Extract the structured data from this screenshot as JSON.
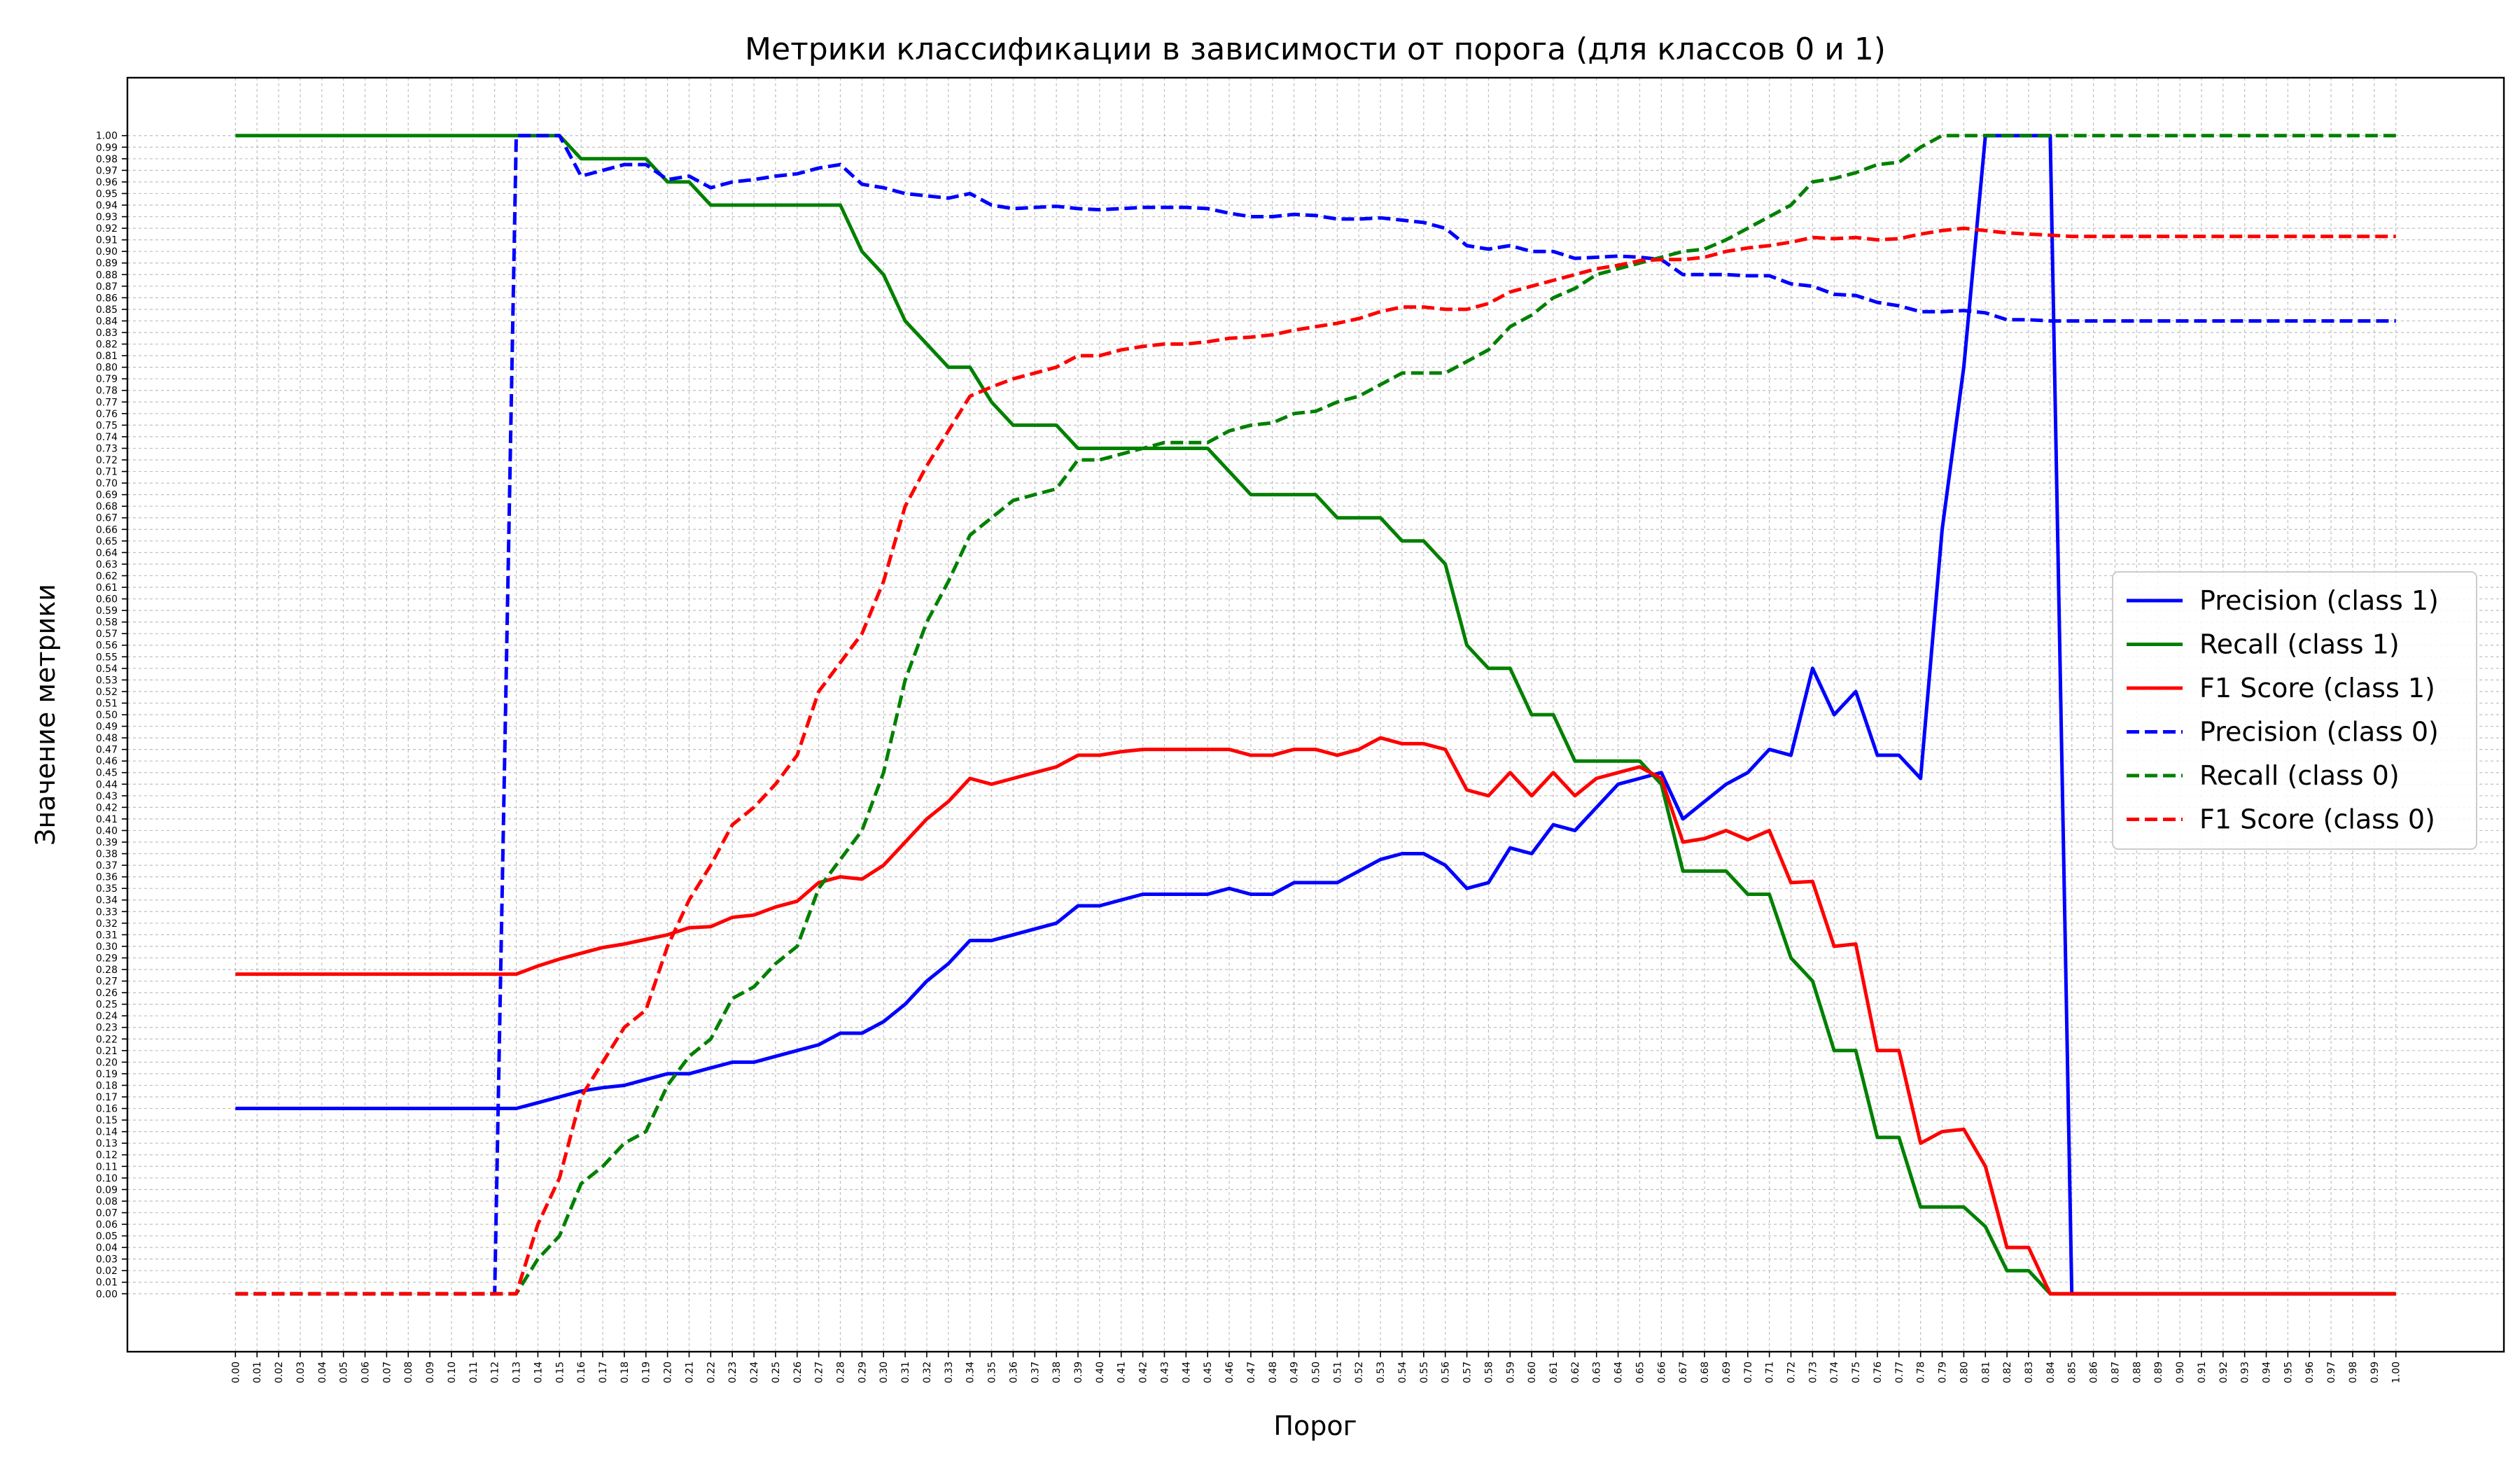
{
  "chart_data": {
    "type": "line",
    "title": "Метрики классификации в зависимости от порога (для классов 0 и 1)",
    "xlabel": "Порог",
    "ylabel": "Значение метрики",
    "xlim": [
      -0.05,
      1.05
    ],
    "ylim": [
      -0.05,
      1.05
    ],
    "grid": true,
    "legend_position": "center-right",
    "x": [
      0.0,
      0.01,
      0.02,
      0.03,
      0.04,
      0.05,
      0.06,
      0.07,
      0.08,
      0.09,
      0.1,
      0.11,
      0.12,
      0.13,
      0.14,
      0.15,
      0.16,
      0.17,
      0.18,
      0.19,
      0.2,
      0.21,
      0.22,
      0.23,
      0.24,
      0.25,
      0.26,
      0.27,
      0.28,
      0.29,
      0.3,
      0.31,
      0.32,
      0.33,
      0.34,
      0.35,
      0.36,
      0.37,
      0.38,
      0.39,
      0.4,
      0.41,
      0.42,
      0.43,
      0.44,
      0.45,
      0.46,
      0.47,
      0.48,
      0.49,
      0.5,
      0.51,
      0.52,
      0.53,
      0.54,
      0.55,
      0.56,
      0.57,
      0.58,
      0.59,
      0.6,
      0.61,
      0.62,
      0.63,
      0.64,
      0.65,
      0.66,
      0.67,
      0.68,
      0.69,
      0.7,
      0.71,
      0.72,
      0.73,
      0.74,
      0.75,
      0.76,
      0.77,
      0.78,
      0.79,
      0.8,
      0.81,
      0.82,
      0.83,
      0.84,
      0.85,
      0.86,
      0.87,
      0.88,
      0.89,
      0.9,
      0.91,
      0.92,
      0.93,
      0.94,
      0.95,
      0.96,
      0.97,
      0.98,
      0.99,
      1.0
    ],
    "xtick_labels": [
      "0.00",
      "0.01",
      "0.02",
      "0.03",
      "0.04",
      "0.05",
      "0.06",
      "0.07",
      "0.08",
      "0.09",
      "0.10",
      "0.11",
      "0.12",
      "0.13",
      "0.14",
      "0.15",
      "0.16",
      "0.17",
      "0.18",
      "0.19",
      "0.20",
      "0.21",
      "0.22",
      "0.23",
      "0.24",
      "0.25",
      "0.26",
      "0.27",
      "0.28",
      "0.29",
      "0.30",
      "0.31",
      "0.32",
      "0.33",
      "0.34",
      "0.35",
      "0.36",
      "0.37",
      "0.38",
      "0.39",
      "0.40",
      "0.41",
      "0.42",
      "0.43",
      "0.44",
      "0.45",
      "0.46",
      "0.47",
      "0.48",
      "0.49",
      "0.50",
      "0.51",
      "0.52",
      "0.53",
      "0.54",
      "0.55",
      "0.56",
      "0.57",
      "0.58",
      "0.59",
      "0.60",
      "0.61",
      "0.62",
      "0.63",
      "0.64",
      "0.65",
      "0.66",
      "0.67",
      "0.68",
      "0.69",
      "0.70",
      "0.71",
      "0.72",
      "0.73",
      "0.74",
      "0.75",
      "0.76",
      "0.77",
      "0.78",
      "0.79",
      "0.80",
      "0.81",
      "0.82",
      "0.83",
      "0.84",
      "0.85",
      "0.86",
      "0.87",
      "0.88",
      "0.89",
      "0.90",
      "0.91",
      "0.92",
      "0.93",
      "0.94",
      "0.95",
      "0.96",
      "0.97",
      "0.98",
      "0.99",
      "1.00"
    ],
    "ytick_labels": [
      "0.00",
      "0.01",
      "0.02",
      "0.03",
      "0.04",
      "0.05",
      "0.06",
      "0.07",
      "0.08",
      "0.09",
      "0.10",
      "0.11",
      "0.12",
      "0.13",
      "0.14",
      "0.15",
      "0.16",
      "0.17",
      "0.18",
      "0.19",
      "0.20",
      "0.21",
      "0.22",
      "0.23",
      "0.24",
      "0.25",
      "0.26",
      "0.27",
      "0.28",
      "0.29",
      "0.30",
      "0.31",
      "0.32",
      "0.33",
      "0.34",
      "0.35",
      "0.36",
      "0.37",
      "0.38",
      "0.39",
      "0.40",
      "0.41",
      "0.42",
      "0.43",
      "0.44",
      "0.45",
      "0.46",
      "0.47",
      "0.48",
      "0.49",
      "0.50",
      "0.51",
      "0.52",
      "0.53",
      "0.54",
      "0.55",
      "0.56",
      "0.57",
      "0.58",
      "0.59",
      "0.60",
      "0.61",
      "0.62",
      "0.63",
      "0.64",
      "0.65",
      "0.66",
      "0.67",
      "0.68",
      "0.69",
      "0.70",
      "0.71",
      "0.72",
      "0.73",
      "0.74",
      "0.75",
      "0.76",
      "0.77",
      "0.78",
      "0.79",
      "0.80",
      "0.81",
      "0.82",
      "0.83",
      "0.84",
      "0.85",
      "0.86",
      "0.87",
      "0.88",
      "0.89",
      "0.90",
      "0.91",
      "0.92",
      "0.93",
      "0.94",
      "0.95",
      "0.96",
      "0.97",
      "0.98",
      "0.99",
      "1.00"
    ],
    "series": [
      {
        "name": "Precision (class 1)",
        "color": "#0000ff",
        "style": "solid",
        "values": [
          0.16,
          0.16,
          0.16,
          0.16,
          0.16,
          0.16,
          0.16,
          0.16,
          0.16,
          0.16,
          0.16,
          0.16,
          0.16,
          0.16,
          0.165,
          0.17,
          0.175,
          0.178,
          0.18,
          0.185,
          0.19,
          0.19,
          0.195,
          0.2,
          0.2,
          0.205,
          0.21,
          0.215,
          0.225,
          0.225,
          0.235,
          0.25,
          0.27,
          0.285,
          0.305,
          0.305,
          0.31,
          0.315,
          0.32,
          0.335,
          0.335,
          0.34,
          0.345,
          0.345,
          0.345,
          0.345,
          0.35,
          0.345,
          0.345,
          0.355,
          0.355,
          0.355,
          0.365,
          0.375,
          0.38,
          0.38,
          0.37,
          0.35,
          0.355,
          0.385,
          0.38,
          0.405,
          0.4,
          0.42,
          0.44,
          0.445,
          0.45,
          0.41,
          0.425,
          0.44,
          0.45,
          0.47,
          0.465,
          0.54,
          0.5,
          0.52,
          0.465,
          0.465,
          0.445,
          0.66,
          0.8,
          1.0,
          1.0,
          1.0,
          1.0,
          0.0,
          0.0,
          0.0,
          0.0,
          0.0,
          0.0,
          0.0,
          0.0,
          0.0,
          0.0,
          0.0,
          0.0,
          0.0,
          0.0,
          0.0,
          0.0
        ]
      },
      {
        "name": "Recall (class 1)",
        "color": "#008000",
        "style": "solid",
        "values": [
          1.0,
          1.0,
          1.0,
          1.0,
          1.0,
          1.0,
          1.0,
          1.0,
          1.0,
          1.0,
          1.0,
          1.0,
          1.0,
          1.0,
          1.0,
          1.0,
          0.98,
          0.98,
          0.98,
          0.98,
          0.96,
          0.96,
          0.94,
          0.94,
          0.94,
          0.94,
          0.94,
          0.94,
          0.94,
          0.9,
          0.88,
          0.84,
          0.82,
          0.8,
          0.8,
          0.77,
          0.75,
          0.75,
          0.75,
          0.73,
          0.73,
          0.73,
          0.73,
          0.73,
          0.73,
          0.73,
          0.71,
          0.69,
          0.69,
          0.69,
          0.69,
          0.67,
          0.67,
          0.67,
          0.65,
          0.65,
          0.63,
          0.56,
          0.54,
          0.54,
          0.5,
          0.5,
          0.46,
          0.46,
          0.46,
          0.46,
          0.44,
          0.365,
          0.365,
          0.365,
          0.345,
          0.345,
          0.29,
          0.27,
          0.21,
          0.21,
          0.135,
          0.135,
          0.075,
          0.075,
          0.075,
          0.058,
          0.02,
          0.02,
          0.0,
          0.0,
          0.0,
          0.0,
          0.0,
          0.0,
          0.0,
          0.0,
          0.0,
          0.0,
          0.0,
          0.0,
          0.0,
          0.0,
          0.0,
          0.0,
          0.0
        ]
      },
      {
        "name": "F1 Score (class 1)",
        "color": "#ff0000",
        "style": "solid",
        "values": [
          0.276,
          0.276,
          0.276,
          0.276,
          0.276,
          0.276,
          0.276,
          0.276,
          0.276,
          0.276,
          0.276,
          0.276,
          0.276,
          0.276,
          0.283,
          0.289,
          0.294,
          0.299,
          0.302,
          0.306,
          0.31,
          0.316,
          0.317,
          0.325,
          0.327,
          0.334,
          0.339,
          0.355,
          0.36,
          0.358,
          0.37,
          0.39,
          0.41,
          0.425,
          0.445,
          0.44,
          0.445,
          0.45,
          0.455,
          0.465,
          0.465,
          0.468,
          0.47,
          0.47,
          0.47,
          0.47,
          0.47,
          0.465,
          0.465,
          0.47,
          0.47,
          0.465,
          0.47,
          0.48,
          0.475,
          0.475,
          0.47,
          0.435,
          0.43,
          0.45,
          0.43,
          0.45,
          0.43,
          0.445,
          0.45,
          0.455,
          0.445,
          0.39,
          0.393,
          0.4,
          0.392,
          0.4,
          0.355,
          0.356,
          0.3,
          0.302,
          0.21,
          0.21,
          0.13,
          0.14,
          0.142,
          0.11,
          0.04,
          0.04,
          0.0,
          0.0,
          0.0,
          0.0,
          0.0,
          0.0,
          0.0,
          0.0,
          0.0,
          0.0,
          0.0,
          0.0,
          0.0,
          0.0,
          0.0,
          0.0,
          0.0
        ]
      },
      {
        "name": "Precision (class 0)",
        "color": "#0000ff",
        "style": "dashed",
        "values": [
          0.0,
          0.0,
          0.0,
          0.0,
          0.0,
          0.0,
          0.0,
          0.0,
          0.0,
          0.0,
          0.0,
          0.0,
          0.0,
          1.0,
          1.0,
          1.0,
          0.965,
          0.97,
          0.975,
          0.975,
          0.962,
          0.965,
          0.955,
          0.96,
          0.962,
          0.965,
          0.967,
          0.972,
          0.975,
          0.958,
          0.955,
          0.95,
          0.948,
          0.946,
          0.95,
          0.94,
          0.937,
          0.938,
          0.939,
          0.937,
          0.936,
          0.937,
          0.938,
          0.938,
          0.938,
          0.937,
          0.933,
          0.93,
          0.93,
          0.932,
          0.931,
          0.928,
          0.928,
          0.929,
          0.927,
          0.925,
          0.92,
          0.905,
          0.902,
          0.905,
          0.9,
          0.9,
          0.894,
          0.895,
          0.896,
          0.895,
          0.893,
          0.88,
          0.88,
          0.88,
          0.879,
          0.879,
          0.872,
          0.87,
          0.863,
          0.862,
          0.856,
          0.853,
          0.848,
          0.848,
          0.849,
          0.847,
          0.841,
          0.841,
          0.84,
          0.84,
          0.84,
          0.84,
          0.84,
          0.84,
          0.84,
          0.84,
          0.84,
          0.84,
          0.84,
          0.84,
          0.84,
          0.84,
          0.84,
          0.84,
          0.84
        ]
      },
      {
        "name": "Recall (class 0)",
        "color": "#008000",
        "style": "dashed",
        "values": [
          0.0,
          0.0,
          0.0,
          0.0,
          0.0,
          0.0,
          0.0,
          0.0,
          0.0,
          0.0,
          0.0,
          0.0,
          0.0,
          0.0,
          0.03,
          0.05,
          0.095,
          0.11,
          0.13,
          0.14,
          0.18,
          0.205,
          0.22,
          0.255,
          0.265,
          0.285,
          0.3,
          0.35,
          0.375,
          0.4,
          0.45,
          0.53,
          0.58,
          0.615,
          0.655,
          0.67,
          0.685,
          0.69,
          0.695,
          0.72,
          0.72,
          0.725,
          0.73,
          0.735,
          0.735,
          0.735,
          0.745,
          0.75,
          0.752,
          0.76,
          0.762,
          0.77,
          0.775,
          0.785,
          0.795,
          0.795,
          0.795,
          0.805,
          0.815,
          0.835,
          0.845,
          0.86,
          0.868,
          0.88,
          0.885,
          0.89,
          0.895,
          0.9,
          0.902,
          0.91,
          0.92,
          0.93,
          0.94,
          0.96,
          0.963,
          0.968,
          0.975,
          0.977,
          0.99,
          1.0,
          1.0,
          1.0,
          1.0,
          1.0,
          1.0,
          1.0,
          1.0,
          1.0,
          1.0,
          1.0,
          1.0,
          1.0,
          1.0,
          1.0,
          1.0,
          1.0,
          1.0,
          1.0,
          1.0,
          1.0,
          1.0
        ]
      },
      {
        "name": "F1 Score (class 0)",
        "color": "#ff0000",
        "style": "dashed",
        "values": [
          0.0,
          0.0,
          0.0,
          0.0,
          0.0,
          0.0,
          0.0,
          0.0,
          0.0,
          0.0,
          0.0,
          0.0,
          0.0,
          0.0,
          0.06,
          0.1,
          0.17,
          0.2,
          0.23,
          0.245,
          0.3,
          0.34,
          0.37,
          0.405,
          0.42,
          0.44,
          0.465,
          0.52,
          0.545,
          0.57,
          0.615,
          0.68,
          0.715,
          0.745,
          0.775,
          0.783,
          0.79,
          0.795,
          0.8,
          0.81,
          0.81,
          0.815,
          0.818,
          0.82,
          0.82,
          0.822,
          0.825,
          0.826,
          0.828,
          0.832,
          0.835,
          0.838,
          0.842,
          0.848,
          0.852,
          0.852,
          0.85,
          0.85,
          0.855,
          0.865,
          0.87,
          0.875,
          0.88,
          0.885,
          0.888,
          0.892,
          0.893,
          0.893,
          0.895,
          0.9,
          0.903,
          0.905,
          0.908,
          0.912,
          0.911,
          0.912,
          0.91,
          0.911,
          0.915,
          0.918,
          0.92,
          0.918,
          0.916,
          0.915,
          0.914,
          0.913,
          0.913,
          0.913,
          0.913,
          0.913,
          0.913,
          0.913,
          0.913,
          0.913,
          0.913,
          0.913,
          0.913,
          0.913,
          0.913,
          0.913,
          0.913
        ]
      }
    ]
  }
}
